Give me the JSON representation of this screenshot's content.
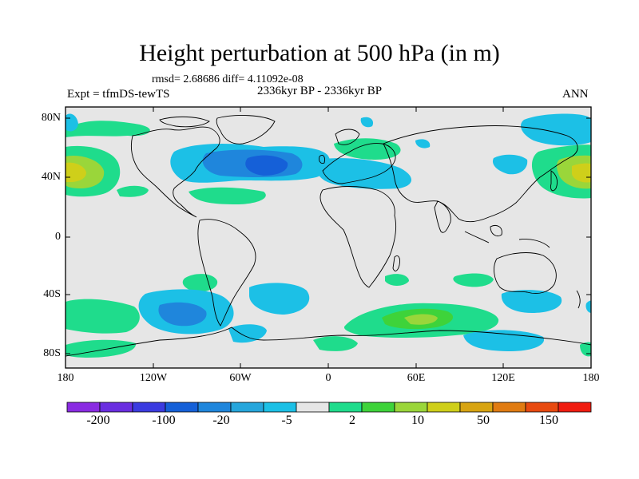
{
  "header": {
    "title": "Height perturbation at 500 hPa (in m)",
    "stats": "rmsd= 2.68686 diff= 4.11092e-08",
    "period": "2336kyr BP - 2336kyr BP",
    "experiment": "Expt = tfmDS-tewTS",
    "season": "ANN"
  },
  "map": {
    "projection": "cylindrical equidistant",
    "lat_labels": [
      "80N",
      "40N",
      "0",
      "40S",
      "80S"
    ],
    "lon_labels": [
      "180",
      "120W",
      "60W",
      "0",
      "60E",
      "120E",
      "180"
    ],
    "background_color": "#e6e6e6",
    "field_regions": [
      {
        "region": "North Pacific (dateline, ~45N)",
        "level": "10"
      },
      {
        "region": "North Atlantic (~50N, 40W)",
        "level": "-20"
      },
      {
        "region": "North Pacific near Japan (~45N, 160E)",
        "level": "10"
      },
      {
        "region": "Southern Indian Ocean (~55S, 60E)",
        "level": "10"
      },
      {
        "region": "South Pacific (~55S, 100W)",
        "level": "-20"
      }
    ]
  },
  "colorbar": {
    "colors": [
      "#8a2be2",
      "#6a2ee0",
      "#3b3be0",
      "#1560d8",
      "#1f86dc",
      "#26a6dc",
      "#1cc0e6",
      "#e6e6e6",
      "#1fdc8c",
      "#3ed33a",
      "#9ad63a",
      "#cfcf1a",
      "#d8a412",
      "#e07b12",
      "#e84a10",
      "#f01c10"
    ],
    "labels": [
      "-200",
      "-100",
      "-20",
      "-5",
      "2",
      "10",
      "50",
      "150"
    ]
  }
}
